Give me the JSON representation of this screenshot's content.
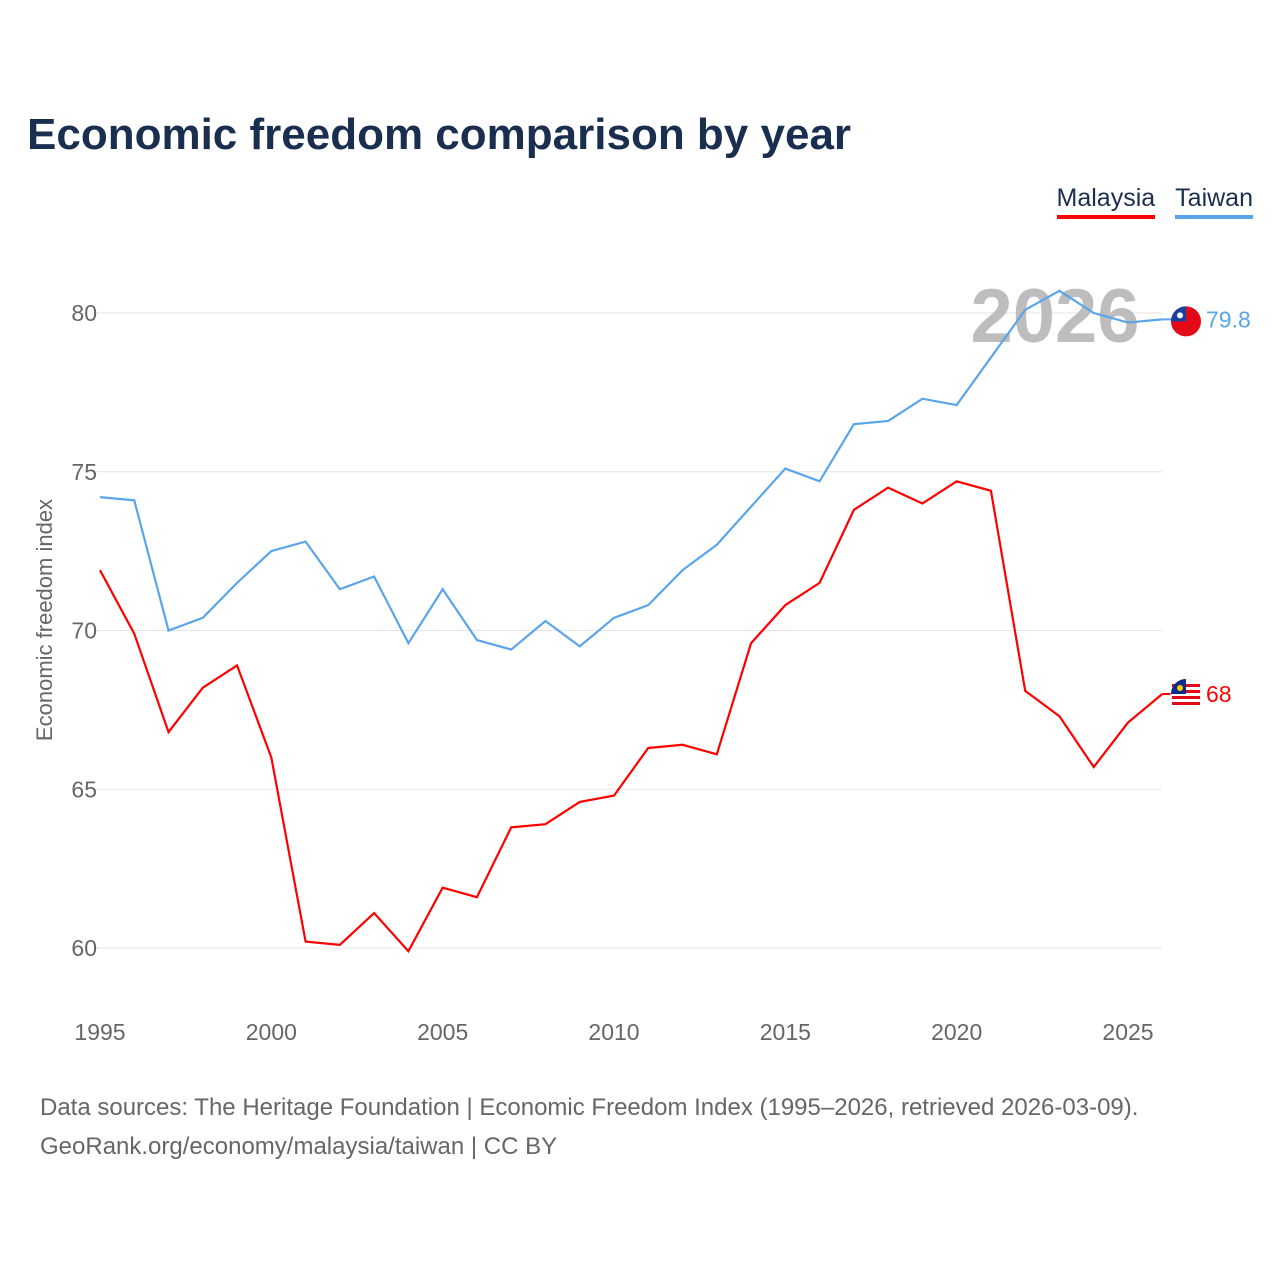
{
  "chart_data": {
    "type": "line",
    "title": "Economic freedom comparison by year",
    "xlabel": "",
    "ylabel": "Economic freedom index",
    "xlim": [
      1995,
      2026
    ],
    "ylim": [
      58.5,
      82
    ],
    "yticks": [
      60,
      65,
      70,
      75,
      80
    ],
    "xticks": [
      1995,
      2000,
      2005,
      2010,
      2015,
      2020,
      2025
    ],
    "grid": true,
    "legend_position": "top-right",
    "watermark_year": "2026",
    "x": [
      1995,
      1996,
      1997,
      1998,
      1999,
      2000,
      2001,
      2002,
      2003,
      2004,
      2005,
      2006,
      2007,
      2008,
      2009,
      2010,
      2011,
      2012,
      2013,
      2014,
      2015,
      2016,
      2017,
      2018,
      2019,
      2020,
      2021,
      2022,
      2023,
      2024,
      2025,
      2026
    ],
    "series": [
      {
        "name": "Malaysia",
        "color": "#ff0000",
        "end_label": "68",
        "values": [
          71.9,
          69.9,
          66.8,
          68.2,
          68.9,
          66.0,
          60.2,
          60.1,
          61.1,
          59.9,
          61.9,
          61.6,
          63.8,
          63.9,
          64.6,
          64.8,
          66.3,
          66.4,
          66.1,
          69.6,
          70.8,
          71.5,
          73.8,
          74.5,
          74.0,
          74.7,
          74.4,
          68.1,
          67.3,
          65.7,
          67.1,
          68.0
        ]
      },
      {
        "name": "Taiwan",
        "color": "#5aa5ea",
        "end_label": "79.8",
        "values": [
          74.2,
          74.1,
          70.0,
          70.4,
          71.5,
          72.5,
          72.8,
          71.3,
          71.7,
          69.6,
          71.3,
          69.7,
          69.4,
          70.3,
          69.5,
          70.4,
          70.8,
          71.9,
          72.7,
          73.9,
          75.1,
          74.7,
          76.5,
          76.6,
          77.3,
          77.1,
          78.6,
          80.1,
          80.7,
          80.0,
          79.7,
          79.8
        ]
      }
    ]
  },
  "footer": {
    "line1": "Data sources: The Heritage Foundation | Economic Freedom Index (1995–2026, retrieved 2026-03-09).",
    "line2": "GeoRank.org/economy/malaysia/taiwan | CC BY"
  }
}
